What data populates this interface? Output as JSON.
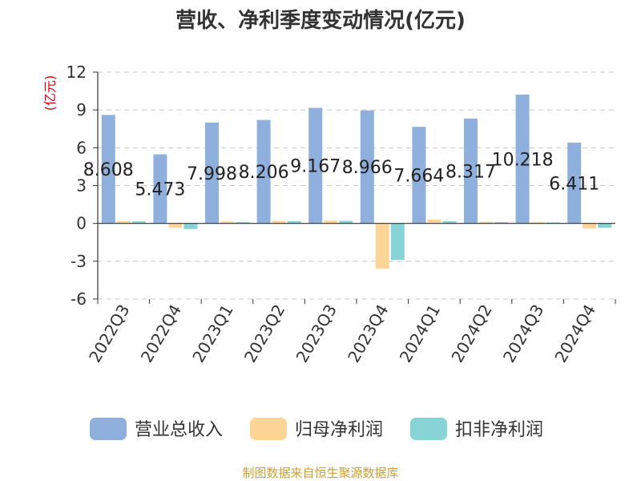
{
  "chart_data": {
    "type": "bar",
    "title": "营收、净利季度变动情况(亿元)",
    "ylabel": "(亿元)",
    "ylim": [
      -6,
      12
    ],
    "yticks": [
      -6,
      -3,
      0,
      3,
      6,
      9,
      12
    ],
    "grid": true,
    "legend_position": "bottom",
    "categories": [
      "2022Q3",
      "2022Q4",
      "2023Q1",
      "2023Q2",
      "2023Q3",
      "2023Q4",
      "2024Q1",
      "2024Q2",
      "2024Q3",
      "2024Q4"
    ],
    "series": [
      {
        "name": "营业总收入",
        "color": "#8fb0dc",
        "values": [
          8.608,
          5.473,
          7.998,
          8.206,
          9.167,
          8.966,
          7.664,
          8.317,
          10.218,
          6.411
        ]
      },
      {
        "name": "归母净利润",
        "color": "#fdd697",
        "values": [
          0.18,
          -0.35,
          0.15,
          0.2,
          0.22,
          -3.6,
          0.3,
          0.12,
          0.1,
          -0.4
        ]
      },
      {
        "name": "扣非净利润",
        "color": "#88d3d5",
        "values": [
          0.16,
          -0.45,
          0.1,
          0.18,
          0.2,
          -2.9,
          0.18,
          0.1,
          0.08,
          -0.35
        ]
      }
    ],
    "data_labels": [
      "8.608",
      "5.473",
      "7.998",
      "8.206",
      "9.167",
      "8.966",
      "7.664",
      "8.317",
      "10.218",
      "6.411"
    ]
  },
  "source": "制图数据来自恒生聚源数据库"
}
